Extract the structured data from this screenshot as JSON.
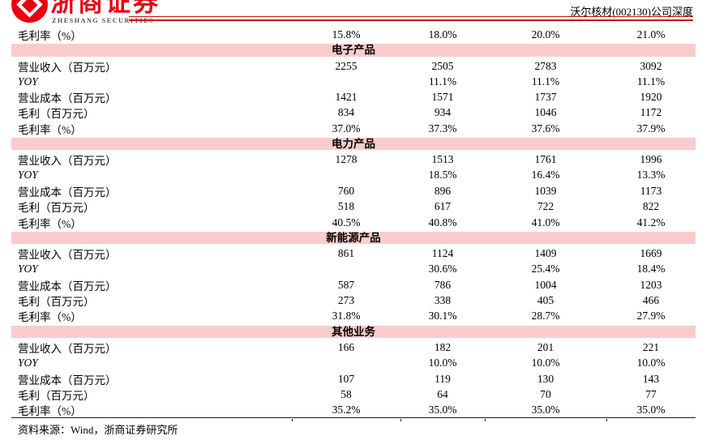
{
  "header": {
    "logo_cn": "浙商证券",
    "logo_en": "ZHESHANG SECURITIES",
    "doc_title": "沃尔核材(002130)公司深度",
    "brand_red": "#e60012",
    "rule_red": "#c11212"
  },
  "colors": {
    "section_band_bg": "#f9cccb",
    "table_bottom_rule": "#1a1a1a"
  },
  "table": {
    "sections": [
      {
        "header": null,
        "rows": [
          {
            "label": "毛利率（%）",
            "values": [
              "15.8%",
              "18.0%",
              "20.0%",
              "21.0%"
            ]
          }
        ]
      },
      {
        "header": "电子产品",
        "rows": [
          {
            "label": "营业收入（百万元）",
            "values": [
              "2255",
              "2505",
              "2783",
              "3092"
            ]
          },
          {
            "label": "YOY",
            "italic": true,
            "values": [
              "",
              "11.1%",
              "11.1%",
              "11.1%"
            ]
          },
          {
            "label": "营业成本（百万元）",
            "values": [
              "1421",
              "1571",
              "1737",
              "1920"
            ]
          },
          {
            "label": "毛利（百万元）",
            "values": [
              "834",
              "934",
              "1046",
              "1172"
            ]
          },
          {
            "label": "毛利率（%）",
            "values": [
              "37.0%",
              "37.3%",
              "37.6%",
              "37.9%"
            ]
          }
        ]
      },
      {
        "header": "电力产品",
        "rows": [
          {
            "label": "营业收入（百万元）",
            "values": [
              "1278",
              "1513",
              "1761",
              "1996"
            ]
          },
          {
            "label": "YOY",
            "italic": true,
            "values": [
              "",
              "18.5%",
              "16.4%",
              "13.3%"
            ]
          },
          {
            "label": "营业成本（百万元）",
            "values": [
              "760",
              "896",
              "1039",
              "1173"
            ]
          },
          {
            "label": "毛利（百万元）",
            "values": [
              "518",
              "617",
              "722",
              "822"
            ]
          },
          {
            "label": "毛利率（%）",
            "values": [
              "40.5%",
              "40.8%",
              "41.0%",
              "41.2%"
            ]
          }
        ]
      },
      {
        "header": "新能源产品",
        "rows": [
          {
            "label": "营业收入（百万元）",
            "values": [
              "861",
              "1124",
              "1409",
              "1669"
            ]
          },
          {
            "label": "YOY",
            "italic": true,
            "values": [
              "",
              "30.6%",
              "25.4%",
              "18.4%"
            ]
          },
          {
            "label": "营业成本（百万元）",
            "values": [
              "587",
              "786",
              "1004",
              "1203"
            ]
          },
          {
            "label": "毛利（百万元）",
            "values": [
              "273",
              "338",
              "405",
              "466"
            ]
          },
          {
            "label": "毛利率（%）",
            "values": [
              "31.8%",
              "30.1%",
              "28.7%",
              "27.9%"
            ]
          }
        ]
      },
      {
        "header": "其他业务",
        "rows": [
          {
            "label": "营业收入（百万元）",
            "values": [
              "166",
              "182",
              "201",
              "221"
            ]
          },
          {
            "label": "YOY",
            "italic": true,
            "values": [
              "",
              "10.0%",
              "10.0%",
              "10.0%"
            ]
          },
          {
            "label": "营业成本（百万元）",
            "values": [
              "107",
              "119",
              "130",
              "143"
            ]
          },
          {
            "label": "毛利（百万元）",
            "values": [
              "58",
              "64",
              "70",
              "77"
            ]
          },
          {
            "label": "毛利率（%）",
            "values": [
              "35.2%",
              "35.0%",
              "35.0%",
              "35.0%"
            ]
          }
        ]
      }
    ]
  },
  "footer": {
    "source": "资料来源：Wind，浙商证券研究所"
  }
}
